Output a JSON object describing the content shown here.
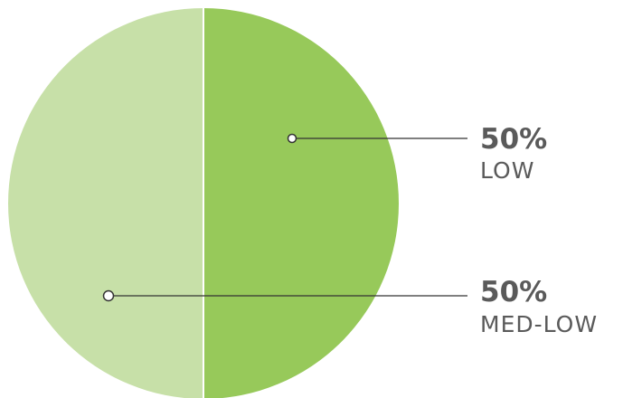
{
  "chart_data": {
    "type": "pie",
    "slices": [
      {
        "label": "LOW",
        "value": 50,
        "value_label": "50%",
        "color": "#97c95a"
      },
      {
        "label": "MED-LOW",
        "value": 50,
        "value_label": "50%",
        "color": "#c7e0a8"
      }
    ],
    "legend": "right",
    "divider_color": "#ffffff",
    "callout_color": "#333333"
  }
}
